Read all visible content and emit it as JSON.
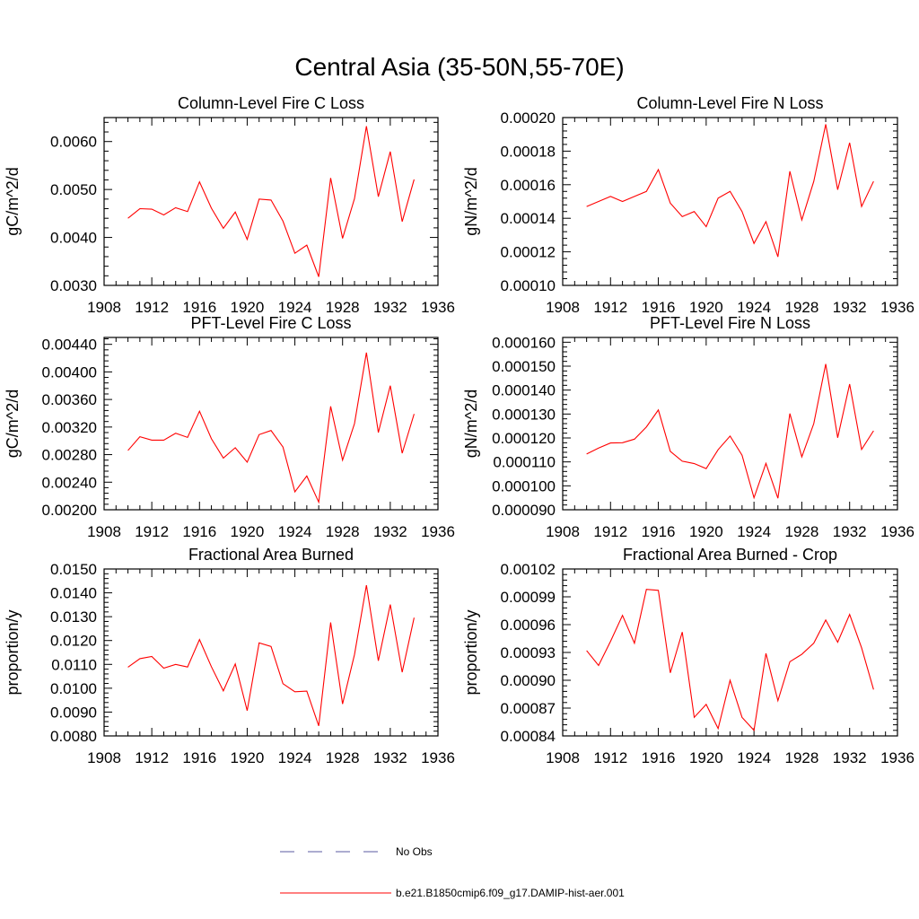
{
  "title": "Central Asia (35-50N,55-70E)",
  "legend": [
    {
      "label": "No Obs",
      "color": "#5a5aa0",
      "dash": true
    },
    {
      "label": "b.e21.B1850cmip6.f09_g17.DAMIP-hist-aer.001",
      "color": "#ff0000",
      "dash": false
    }
  ],
  "chart_data": [
    {
      "type": "line",
      "title": "Column-Level Fire C Loss",
      "ylabel": "gC/m^2/d",
      "xlim": [
        1908,
        1936
      ],
      "xticks": [
        "1908",
        "1912",
        "1916",
        "1920",
        "1924",
        "1928",
        "1932",
        "1936"
      ],
      "ylim": [
        0.003,
        0.0065
      ],
      "yticks": [
        "0.0030",
        "0.0040",
        "0.0050",
        "0.0060"
      ],
      "x": [
        1910,
        1911,
        1912,
        1913,
        1914,
        1915,
        1916,
        1917,
        1918,
        1919,
        1920,
        1921,
        1922,
        1923,
        1924,
        1925,
        1926,
        1927,
        1928,
        1929,
        1930,
        1931,
        1932,
        1933,
        1934
      ],
      "series": [
        {
          "color": "#ff0000",
          "values": [
            0.0044,
            0.0046,
            0.00459,
            0.00447,
            0.00462,
            0.00454,
            0.00516,
            0.00461,
            0.00419,
            0.00453,
            0.00396,
            0.0048,
            0.00478,
            0.00434,
            0.00367,
            0.00384,
            0.00318,
            0.00524,
            0.00398,
            0.00481,
            0.00632,
            0.00485,
            0.00579,
            0.00433,
            0.00521
          ]
        }
      ]
    },
    {
      "type": "line",
      "title": "Column-Level Fire N Loss",
      "ylabel": "gN/m^2/d",
      "xlim": [
        1908,
        1936
      ],
      "xticks": [
        "1908",
        "1912",
        "1916",
        "1920",
        "1924",
        "1928",
        "1932",
        "1936"
      ],
      "ylim": [
        0.0001,
        0.0002
      ],
      "yticks": [
        "0.00010",
        "0.00012",
        "0.00014",
        "0.00016",
        "0.00018",
        "0.00020"
      ],
      "x": [
        1910,
        1911,
        1912,
        1913,
        1914,
        1915,
        1916,
        1917,
        1918,
        1919,
        1920,
        1921,
        1922,
        1923,
        1924,
        1925,
        1926,
        1927,
        1928,
        1929,
        1930,
        1931,
        1932,
        1933,
        1934
      ],
      "series": [
        {
          "color": "#ff0000",
          "values": [
            0.000147,
            0.00015,
            0.000153,
            0.00015,
            0.000153,
            0.000156,
            0.000169,
            0.000149,
            0.000141,
            0.000144,
            0.000135,
            0.000152,
            0.000156,
            0.000144,
            0.000125,
            0.000138,
            0.000117,
            0.000168,
            0.000139,
            0.000162,
            0.000196,
            0.000157,
            0.000185,
            0.000147,
            0.000162
          ]
        }
      ]
    },
    {
      "type": "line",
      "title": "PFT-Level Fire C Loss",
      "ylabel": "gC/m^2/d",
      "xlim": [
        1908,
        1936
      ],
      "xticks": [
        "1908",
        "1912",
        "1916",
        "1920",
        "1924",
        "1928",
        "1932",
        "1936"
      ],
      "ylim": [
        0.002,
        0.0045
      ],
      "yticks": [
        "0.00200",
        "0.00240",
        "0.00280",
        "0.00320",
        "0.00360",
        "0.00400",
        "0.00440"
      ],
      "x": [
        1910,
        1911,
        1912,
        1913,
        1914,
        1915,
        1916,
        1917,
        1918,
        1919,
        1920,
        1921,
        1922,
        1923,
        1924,
        1925,
        1926,
        1927,
        1928,
        1929,
        1930,
        1931,
        1932,
        1933,
        1934
      ],
      "series": [
        {
          "color": "#ff0000",
          "values": [
            0.00286,
            0.00306,
            0.00301,
            0.00301,
            0.00311,
            0.00305,
            0.00343,
            0.00303,
            0.00275,
            0.0029,
            0.00269,
            0.00309,
            0.00315,
            0.00291,
            0.00226,
            0.00249,
            0.00211,
            0.0035,
            0.00272,
            0.00325,
            0.00428,
            0.00312,
            0.0038,
            0.00282,
            0.00339
          ]
        }
      ]
    },
    {
      "type": "line",
      "title": "PFT-Level Fire N Loss",
      "ylabel": "gN/m^2/d",
      "xlim": [
        1908,
        1936
      ],
      "xticks": [
        "1908",
        "1912",
        "1916",
        "1920",
        "1924",
        "1928",
        "1932",
        "1936"
      ],
      "ylim": [
        9e-05,
        0.000162
      ],
      "yticks": [
        "0.000090",
        "0.000100",
        "0.000110",
        "0.000120",
        "0.000130",
        "0.000140",
        "0.000150",
        "0.000160"
      ],
      "x": [
        1910,
        1911,
        1912,
        1913,
        1914,
        1915,
        1916,
        1917,
        1918,
        1919,
        1920,
        1921,
        1922,
        1923,
        1924,
        1925,
        1926,
        1927,
        1928,
        1929,
        1930,
        1931,
        1932,
        1933,
        1934
      ],
      "series": [
        {
          "color": "#ff0000",
          "values": [
            0.0001133,
            0.0001158,
            0.0001179,
            0.000118,
            0.0001195,
            0.0001246,
            0.0001317,
            0.0001144,
            0.0001103,
            0.0001093,
            0.0001072,
            0.0001151,
            0.0001208,
            0.0001128,
            9.5e-05,
            0.0001094,
            9.48e-05,
            0.0001302,
            0.0001121,
            0.000126,
            0.0001509,
            0.0001201,
            0.0001425,
            0.0001152,
            0.000123
          ]
        }
      ]
    },
    {
      "type": "line",
      "title": "Fractional Area Burned",
      "ylabel": "proportion/y",
      "xlim": [
        1908,
        1936
      ],
      "xticks": [
        "1908",
        "1912",
        "1916",
        "1920",
        "1924",
        "1928",
        "1932",
        "1936"
      ],
      "ylim": [
        0.008,
        0.015
      ],
      "yticks": [
        "0.0080",
        "0.0090",
        "0.0100",
        "0.0110",
        "0.0120",
        "0.0130",
        "0.0140",
        "0.0150"
      ],
      "x": [
        1910,
        1911,
        1912,
        1913,
        1914,
        1915,
        1916,
        1917,
        1918,
        1919,
        1920,
        1921,
        1922,
        1923,
        1924,
        1925,
        1926,
        1927,
        1928,
        1929,
        1930,
        1931,
        1932,
        1933,
        1934
      ],
      "series": [
        {
          "color": "#ff0000",
          "values": [
            0.01088,
            0.01124,
            0.01133,
            0.01084,
            0.011,
            0.01089,
            0.01204,
            0.0109,
            0.00989,
            0.01102,
            0.00906,
            0.0119,
            0.01175,
            0.01019,
            0.00985,
            0.00988,
            0.00842,
            0.01276,
            0.00934,
            0.01141,
            0.01432,
            0.01115,
            0.01351,
            0.01067,
            0.01296
          ]
        }
      ]
    },
    {
      "type": "line",
      "title": "Fractional Area Burned - Crop",
      "ylabel": "proportion/y",
      "xlim": [
        1908,
        1936
      ],
      "xticks": [
        "1908",
        "1912",
        "1916",
        "1920",
        "1924",
        "1928",
        "1932",
        "1936"
      ],
      "ylim": [
        0.00084,
        0.00102
      ],
      "yticks": [
        "0.00084",
        "0.00087",
        "0.00090",
        "0.00093",
        "0.00096",
        "0.00099",
        "0.00102"
      ],
      "x": [
        1910,
        1911,
        1912,
        1913,
        1914,
        1915,
        1916,
        1917,
        1918,
        1919,
        1920,
        1921,
        1922,
        1923,
        1924,
        1925,
        1926,
        1927,
        1928,
        1929,
        1930,
        1931,
        1932,
        1933,
        1934
      ],
      "series": [
        {
          "color": "#ff0000",
          "values": [
            0.000932,
            0.000916,
            0.000942,
            0.00097,
            0.00094,
            0.000998,
            0.000997,
            0.000908,
            0.000952,
            0.00086,
            0.000874,
            0.000848,
            0.0009,
            0.00086,
            0.000846,
            0.000929,
            0.000878,
            0.00092,
            0.000928,
            0.00094,
            0.000965,
            0.000941,
            0.000971,
            0.000935,
            0.00089
          ]
        }
      ]
    }
  ]
}
